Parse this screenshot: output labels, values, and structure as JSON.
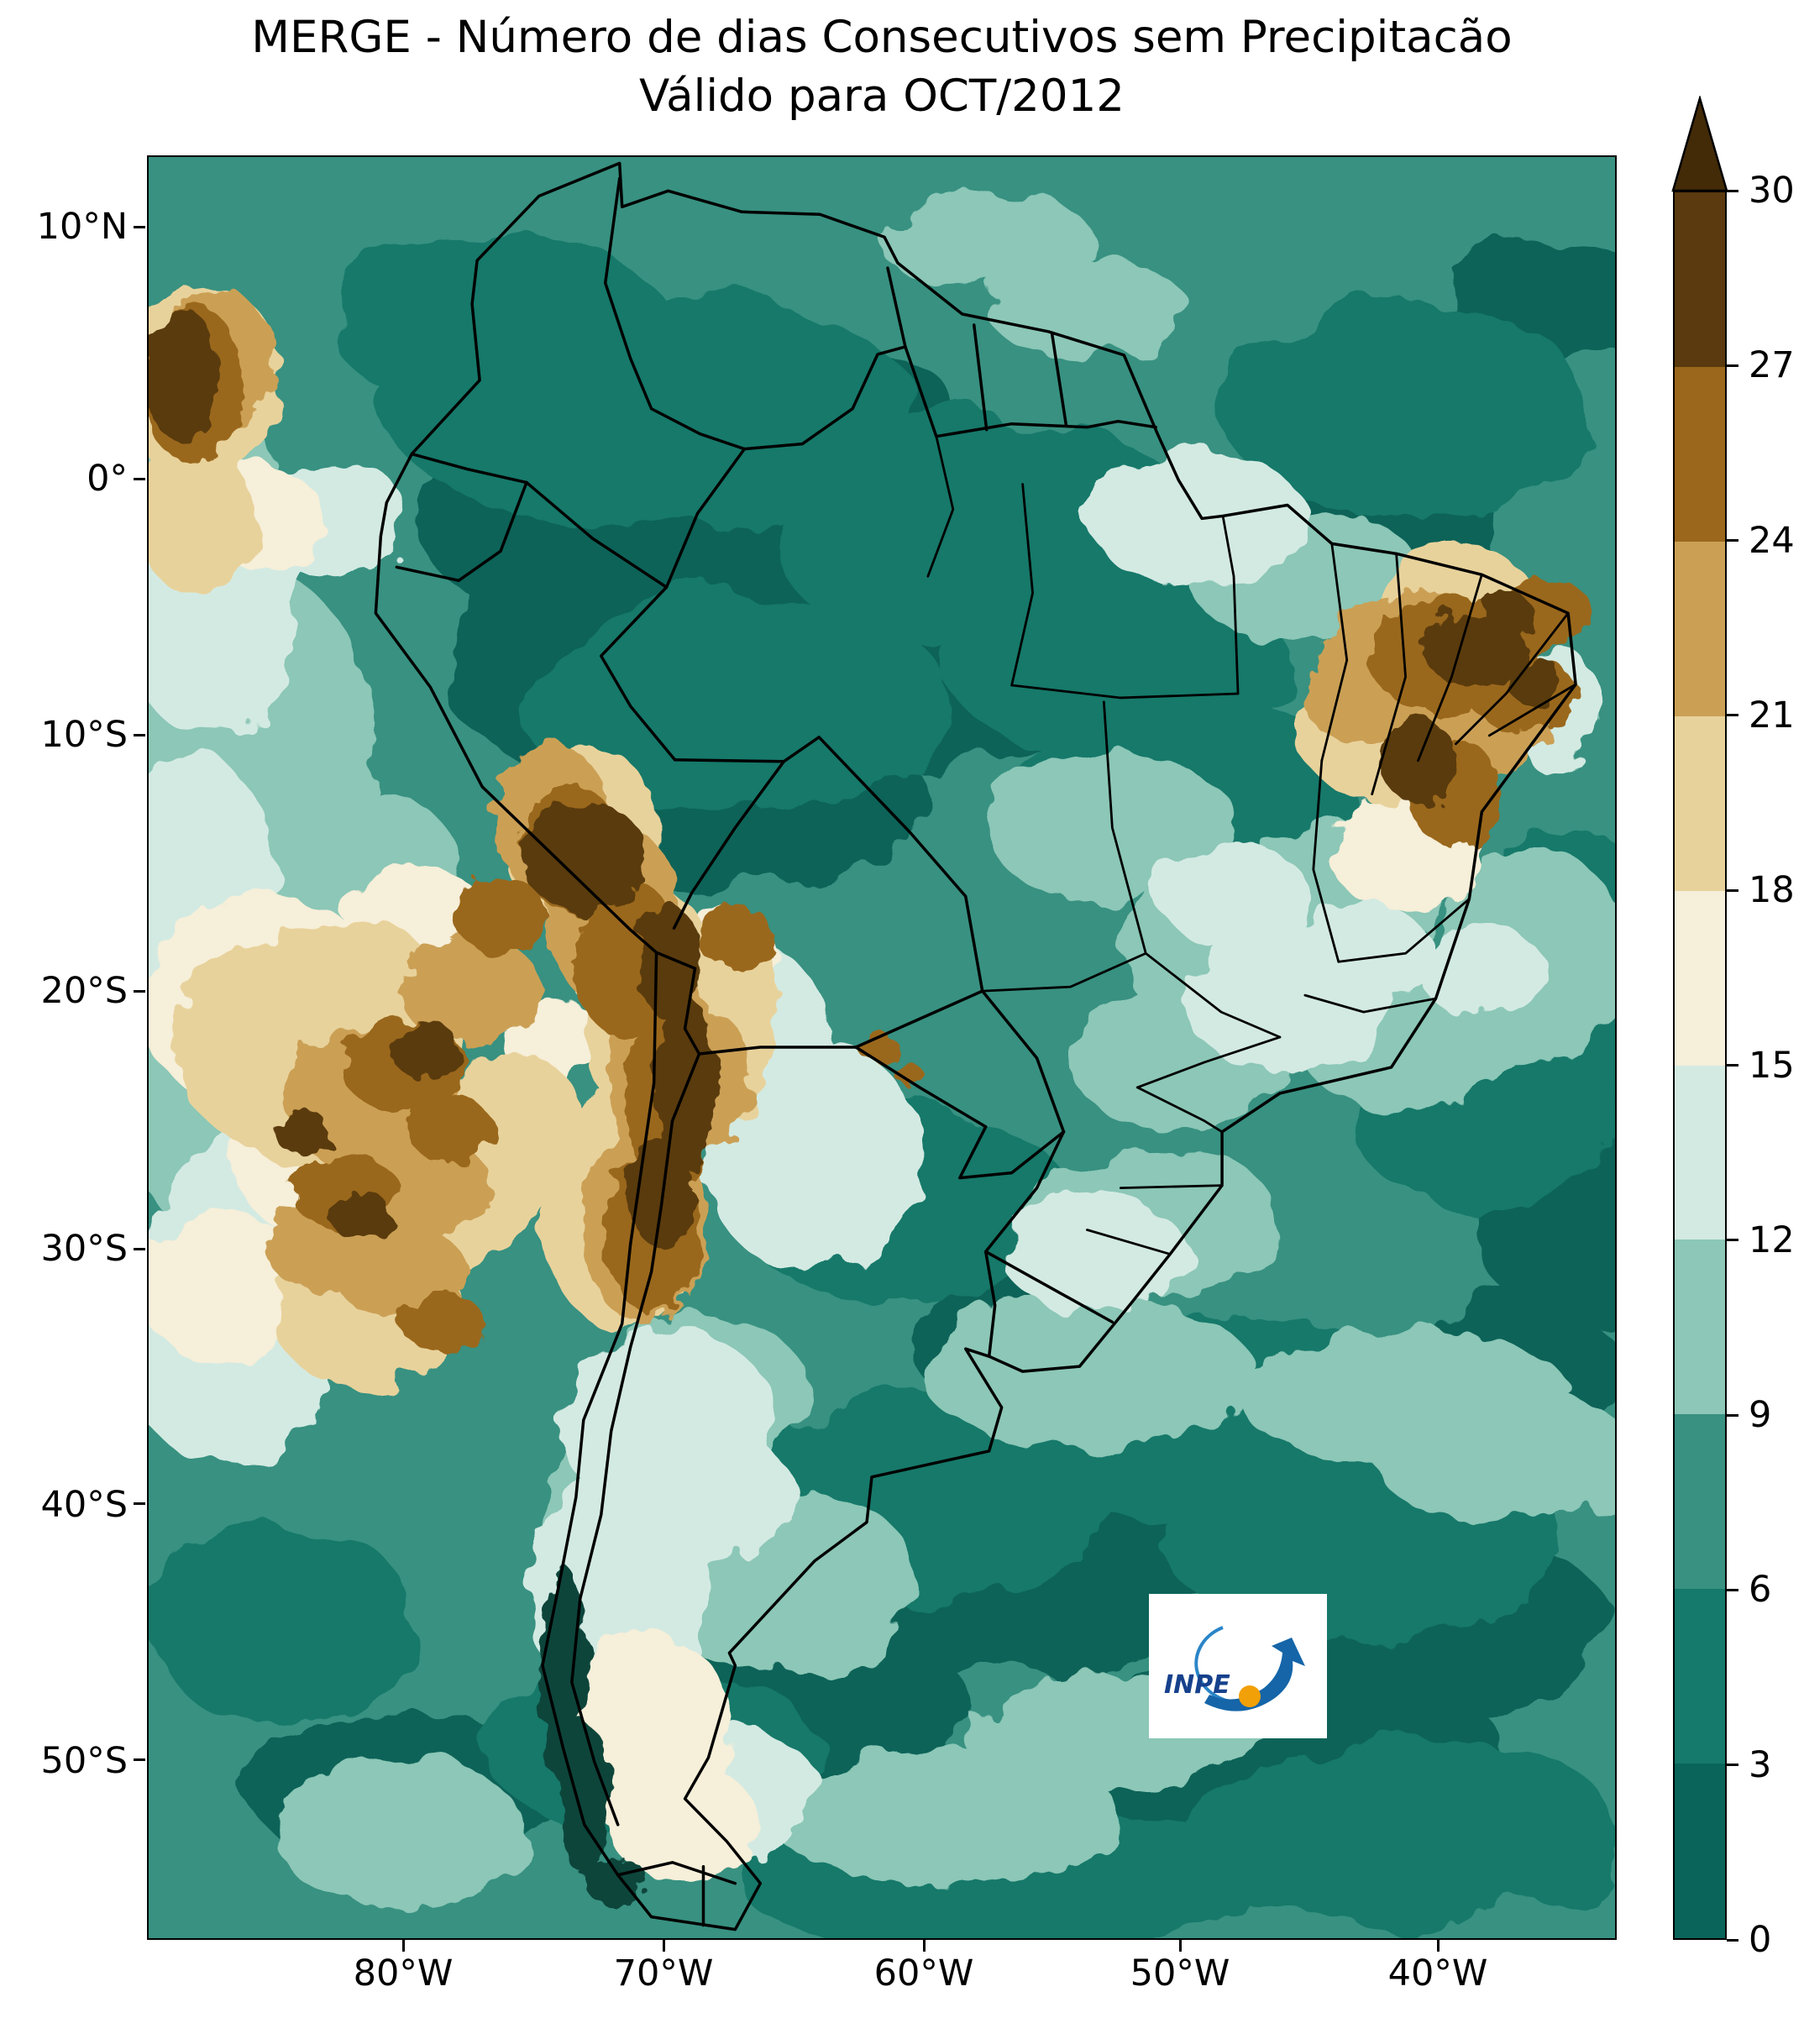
{
  "figure": {
    "title_line1": "MERGE - Número de dias Consecutivos sem Precipitacão",
    "title_line2": "Válido para OCT/2012"
  },
  "axes": {
    "y_tick_labels": [
      "10°N",
      "0°",
      "10°S",
      "20°S",
      "30°S",
      "40°S",
      "50°S"
    ],
    "x_tick_labels": [
      "80°W",
      "70°W",
      "60°W",
      "50°W",
      "40°W"
    ]
  },
  "colorbar": {
    "tick_labels_top_to_bottom": [
      "30",
      "27",
      "24",
      "21",
      "18",
      "15",
      "12",
      "9",
      "6",
      "3",
      "0"
    ],
    "values": [
      0,
      3,
      6,
      9,
      12,
      15,
      18,
      21,
      24,
      27,
      30
    ],
    "colors_low_to_high": [
      "#0a6459",
      "#15796b",
      "#389181",
      "#8cc7b7",
      "#d3eae2",
      "#f6efd9",
      "#e8d29b",
      "#cba055",
      "#9a671c",
      "#5a3a0e"
    ],
    "over_color": "#432b08",
    "extend": "max"
  },
  "logo": {
    "label": "INPE"
  },
  "chart_data": {
    "type": "heatmap",
    "title": "MERGE - Número de dias Consecutivos sem Precipitacão",
    "subtitle": "Válido para OCT/2012",
    "region": "South America",
    "x_ticks": [
      "80°W",
      "70°W",
      "60°W",
      "50°W",
      "40°W"
    ],
    "y_ticks": [
      "10°N",
      "0°",
      "10°S",
      "20°S",
      "30°S",
      "40°S",
      "50°S"
    ],
    "colorbar_ticks": [
      0,
      3,
      6,
      9,
      12,
      15,
      18,
      21,
      24,
      27,
      30
    ],
    "colorbar_colors": [
      "#0a6459",
      "#15796b",
      "#389181",
      "#8cc7b7",
      "#d3eae2",
      "#f6efd9",
      "#e8d29b",
      "#cba055",
      "#9a671c",
      "#5a3a0e"
    ],
    "colorbar_over_color": "#432b08",
    "legend_position": "right",
    "grid": false,
    "notable_features": [
      {
        "area": "Amazon basin and northern Brazil",
        "consecutive_dry_days": "0-6"
      },
      {
        "area": "Andes of southern Peru, Bolivia, northern Chile and NW Argentina",
        "consecutive_dry_days": "21-30+"
      },
      {
        "area": "Interior of Northeast Brazil (around 40°W, 5-12°S)",
        "consecutive_dry_days": "21-30+"
      },
      {
        "area": "Southeast Pacific off Chile (80-90°W, 18-30°S)",
        "consecutive_dry_days": "12-30"
      },
      {
        "area": "Top-left Pacific edge near 0°",
        "consecutive_dry_days": "18-30"
      },
      {
        "area": "Central-east Brazil",
        "consecutive_dry_days": "9-15"
      },
      {
        "area": "Southern Patagonia (around 47-50°S)",
        "consecutive_dry_days": "12-18"
      },
      {
        "area": "Atlantic Ocean areas",
        "consecutive_dry_days": "3-12"
      }
    ]
  }
}
